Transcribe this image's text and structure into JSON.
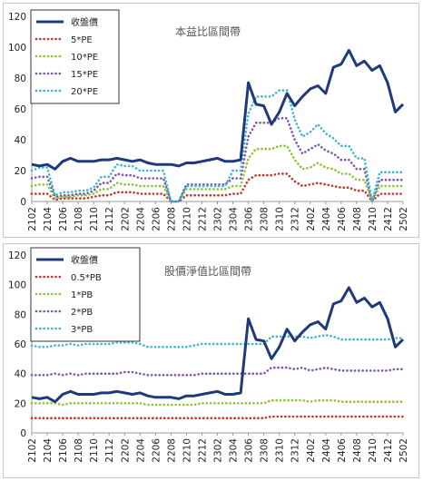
{
  "chart_data": [
    {
      "type": "line",
      "title": "本益比區間帶",
      "ylim": [
        0,
        120
      ],
      "yticks": [
        0,
        20,
        40,
        60,
        80,
        100,
        120
      ],
      "x_tick_labels": [
        "2102",
        "2104",
        "2106",
        "2108",
        "2110",
        "2112",
        "2202",
        "2204",
        "2206",
        "2208",
        "2210",
        "2212",
        "2302",
        "2304",
        "2306",
        "2308",
        "2310",
        "2312",
        "2402",
        "2404",
        "2406",
        "2408",
        "2410",
        "2412",
        "2502"
      ],
      "grid": false,
      "legend_position": "top-left",
      "series": [
        {
          "name": "收盤價",
          "color": "#1f3a7a",
          "style": "solid",
          "values": [
            24,
            23,
            24,
            21,
            26,
            28,
            26,
            26,
            26,
            27,
            27,
            28,
            27,
            26,
            27,
            25,
            24,
            24,
            24,
            23,
            25,
            25,
            26,
            27,
            28,
            26,
            26,
            27,
            77,
            63,
            62,
            50,
            58,
            70,
            62,
            68,
            73,
            75,
            70,
            87,
            89,
            98,
            88,
            91,
            85,
            88,
            77,
            58,
            63
          ]
        },
        {
          "name": "5*PE",
          "color": "#c0392b",
          "style": "dotted",
          "values": [
            5,
            5,
            5,
            1,
            2,
            2,
            2,
            2,
            3,
            4,
            4,
            6,
            6,
            6,
            5,
            5,
            5,
            5,
            0,
            0,
            4,
            4,
            4,
            4,
            4,
            4,
            5,
            5,
            14,
            17,
            17,
            17,
            18,
            18,
            13,
            10,
            11,
            12,
            11,
            10,
            9,
            9,
            7,
            7,
            0,
            5,
            5,
            5,
            5
          ]
        },
        {
          "name": "10*PE",
          "color": "#8cc43c",
          "style": "dotted",
          "values": [
            10,
            11,
            11,
            2,
            3,
            3,
            4,
            4,
            5,
            8,
            8,
            12,
            11,
            11,
            10,
            10,
            10,
            10,
            0,
            0,
            8,
            8,
            8,
            8,
            8,
            8,
            10,
            10,
            28,
            34,
            34,
            34,
            36,
            36,
            27,
            21,
            22,
            25,
            22,
            21,
            18,
            18,
            14,
            14,
            0,
            10,
            10,
            10,
            10
          ]
        },
        {
          "name": "15*PE",
          "color": "#7e57a8",
          "style": "dotted",
          "values": [
            15,
            16,
            16,
            3,
            4,
            4,
            5,
            5,
            7,
            12,
            12,
            18,
            17,
            17,
            15,
            15,
            15,
            15,
            0,
            0,
            11,
            11,
            11,
            11,
            11,
            11,
            15,
            15,
            42,
            51,
            51,
            51,
            54,
            54,
            40,
            31,
            34,
            37,
            33,
            31,
            27,
            27,
            21,
            21,
            0,
            14,
            14,
            14,
            14
          ]
        },
        {
          "name": "20*PE",
          "color": "#3fb6d2",
          "style": "dotted",
          "values": [
            20,
            22,
            22,
            4,
            6,
            6,
            7,
            7,
            9,
            16,
            16,
            24,
            23,
            23,
            20,
            20,
            20,
            20,
            0,
            0,
            10,
            10,
            10,
            10,
            10,
            10,
            20,
            20,
            57,
            68,
            68,
            68,
            72,
            72,
            53,
            42,
            45,
            50,
            44,
            41,
            36,
            36,
            28,
            28,
            0,
            19,
            19,
            19,
            19
          ]
        }
      ]
    },
    {
      "type": "line",
      "title": "股價淨值比區間帶",
      "ylim": [
        0,
        120
      ],
      "yticks": [
        0,
        20,
        40,
        60,
        80,
        100,
        120
      ],
      "x_tick_labels": [
        "2102",
        "2104",
        "2106",
        "2108",
        "2110",
        "2112",
        "2202",
        "2204",
        "2206",
        "2208",
        "2210",
        "2212",
        "2302",
        "2304",
        "2306",
        "2308",
        "2310",
        "2312",
        "2402",
        "2404",
        "2406",
        "2408",
        "2410",
        "2412",
        "2502"
      ],
      "grid": false,
      "legend_position": "top-left",
      "series": [
        {
          "name": "收盤價",
          "color": "#1f3a7a",
          "style": "solid",
          "values": [
            24,
            23,
            24,
            21,
            26,
            28,
            26,
            26,
            26,
            27,
            27,
            28,
            27,
            26,
            27,
            25,
            24,
            24,
            24,
            23,
            25,
            25,
            26,
            27,
            28,
            26,
            26,
            27,
            77,
            63,
            62,
            50,
            58,
            70,
            62,
            68,
            73,
            75,
            70,
            87,
            89,
            98,
            88,
            91,
            85,
            88,
            77,
            58,
            63
          ]
        },
        {
          "name": "0.5*PB",
          "color": "#c0392b",
          "style": "dotted",
          "values": [
            10,
            10,
            10,
            10,
            10,
            10,
            10,
            10,
            10,
            10,
            10,
            10,
            10,
            10,
            10,
            10,
            10,
            10,
            10,
            10,
            10,
            10,
            10,
            10,
            10,
            10,
            10,
            10,
            10,
            10,
            10,
            11,
            11,
            11,
            11,
            11,
            11,
            11,
            11,
            11,
            11,
            11,
            11,
            11,
            11,
            11,
            11,
            11,
            11
          ]
        },
        {
          "name": "1*PB",
          "color": "#8cc43c",
          "style": "dotted",
          "values": [
            20,
            20,
            20,
            20,
            19,
            20,
            20,
            20,
            20,
            20,
            20,
            20,
            20,
            20,
            20,
            19,
            19,
            19,
            19,
            19,
            19,
            19,
            20,
            20,
            20,
            20,
            20,
            20,
            20,
            20,
            20,
            22,
            22,
            22,
            22,
            22,
            21,
            22,
            22,
            22,
            21,
            21,
            21,
            21,
            21,
            21,
            21,
            21,
            21
          ]
        },
        {
          "name": "2*PB",
          "color": "#7e57a8",
          "style": "dotted",
          "values": [
            39,
            39,
            39,
            40,
            39,
            40,
            39,
            40,
            40,
            40,
            40,
            40,
            41,
            41,
            40,
            39,
            39,
            39,
            39,
            39,
            39,
            39,
            40,
            40,
            40,
            40,
            40,
            40,
            40,
            40,
            40,
            44,
            44,
            44,
            43,
            44,
            42,
            43,
            44,
            43,
            42,
            42,
            42,
            42,
            42,
            42,
            42,
            43,
            43
          ]
        },
        {
          "name": "3*PB",
          "color": "#3fb6d2",
          "style": "dotted",
          "values": [
            59,
            58,
            58,
            59,
            59,
            60,
            59,
            60,
            60,
            60,
            60,
            61,
            61,
            61,
            60,
            58,
            58,
            58,
            58,
            58,
            58,
            59,
            60,
            60,
            60,
            60,
            60,
            60,
            60,
            60,
            60,
            65,
            65,
            65,
            65,
            65,
            64,
            65,
            66,
            65,
            63,
            63,
            63,
            63,
            63,
            63,
            63,
            64,
            64
          ]
        }
      ]
    }
  ]
}
